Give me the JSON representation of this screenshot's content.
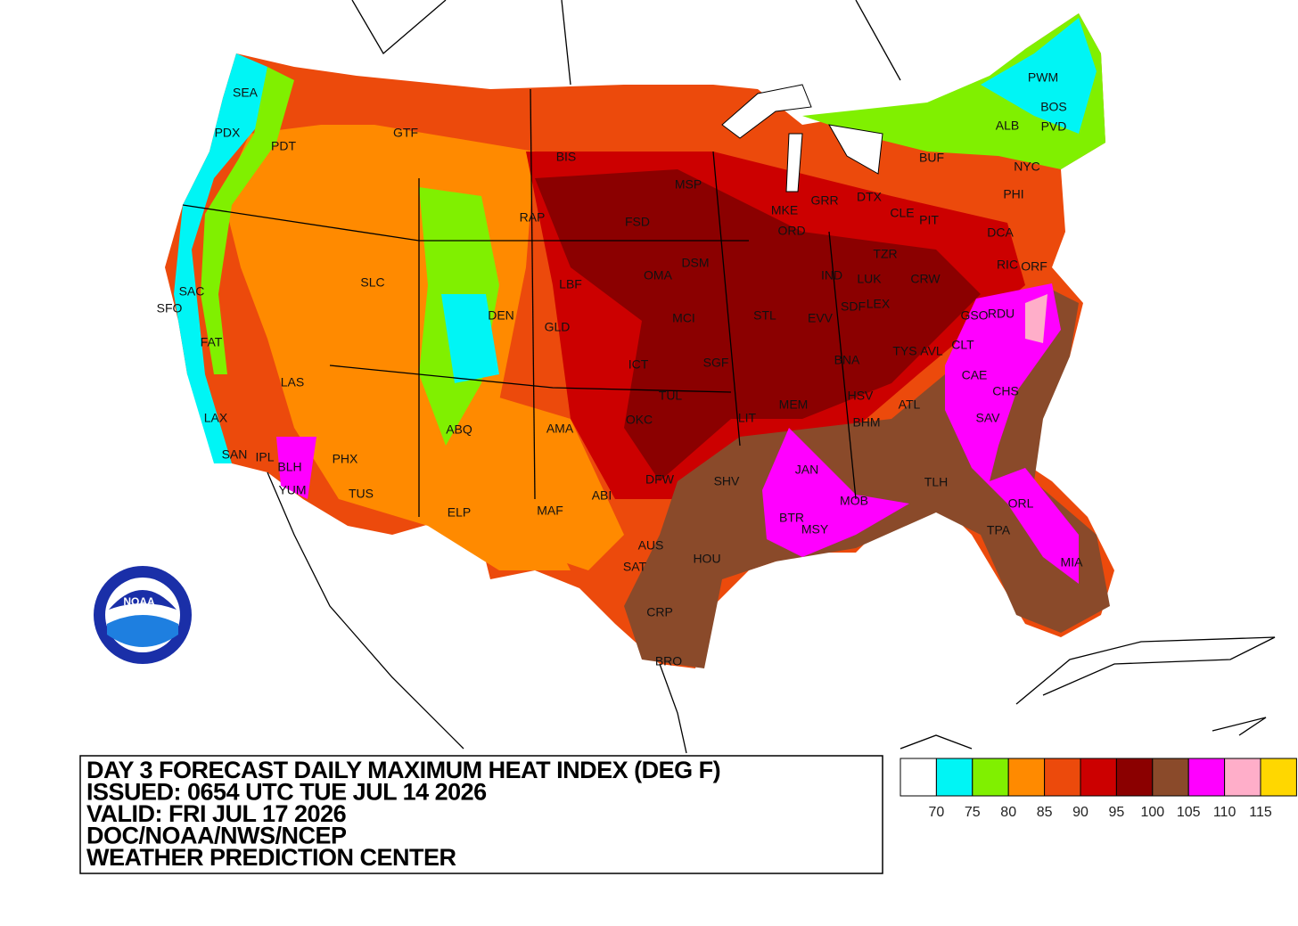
{
  "header": {
    "lines": [
      "DAY 3 FORECAST DAILY MAXIMUM HEAT INDEX (DEG F)",
      "ISSUED: 0654 UTC TUE JUL 14 2026",
      "VALID: FRI JUL 17 2026",
      "DOC/NOAA/NWS/NCEP",
      "WEATHER PREDICTION CENTER"
    ]
  },
  "legend": {
    "colors": [
      "#ffffff",
      "#00f5f5",
      "#80f000",
      "#ff8a00",
      "#ec4a0c",
      "#cc0000",
      "#8b0000",
      "#8a4a2a",
      "#ff00ff",
      "#ffaec9",
      "#ffd700"
    ],
    "labels": [
      70,
      75,
      80,
      85,
      90,
      95,
      100,
      105,
      110,
      115
    ]
  },
  "logo": {
    "text": "NOAA"
  },
  "cities": [
    "SEA",
    "PDX",
    "PDT",
    "GTF",
    "BIS",
    "MSP",
    "FSD",
    "RAP",
    "SAC",
    "SFO",
    "FAT",
    "SLC",
    "DEN",
    "LBF",
    "GLD",
    "OMA",
    "DSM",
    "MKE",
    "GRR",
    "DTX",
    "CLE",
    "PIT",
    "BUF",
    "ALB",
    "PWM",
    "BOS",
    "PVD",
    "NYC",
    "PHI",
    "DCA",
    "RIC",
    "ORF",
    "ORD",
    "IND",
    "TZR",
    "LUK",
    "CRW",
    "SDF",
    "LEX",
    "STL",
    "EVV",
    "MCI",
    "ICT",
    "SGF",
    "TUL",
    "OKC",
    "LIT",
    "MEM",
    "BNA",
    "TYS",
    "AVL",
    "CLT",
    "GSO",
    "RDU",
    "CAE",
    "CHS",
    "SAV",
    "ATL",
    "HSV",
    "BHM",
    "TLH",
    "JAN",
    "MOB",
    "BTR",
    "MSY",
    "ORL",
    "TPA",
    "MIA",
    "SHV",
    "DFW",
    "ABI",
    "AMA",
    "MAF",
    "ELP",
    "ABQ",
    "PHX",
    "TUS",
    "BLH",
    "YUM",
    "IPL",
    "SAN",
    "LAX",
    "LAS",
    "AUS",
    "SAT",
    "HOU",
    "CRP",
    "BRO"
  ]
}
